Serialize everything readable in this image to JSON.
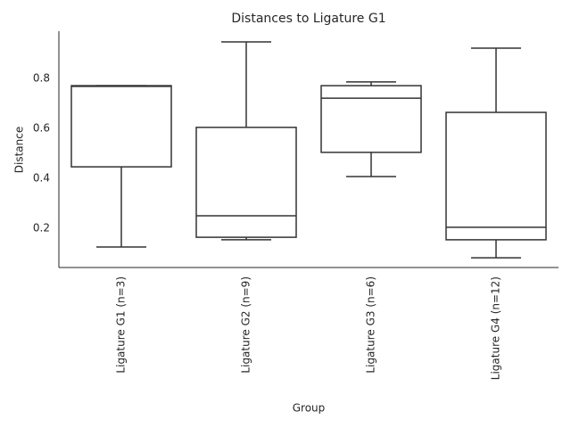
{
  "chart_data": {
    "type": "box",
    "title": "Distances to Ligature G1",
    "x_label": "Group",
    "y_label": "Distance",
    "categories": [
      "Ligature G1 (n=3)",
      "Ligature G2 (n=9)",
      "Ligature G3 (n=6)",
      "Ligature G4 (n=12)"
    ],
    "boxes": [
      {
        "min": 0.125,
        "q1": 0.446,
        "median": 0.768,
        "q3": 0.771,
        "max": 0.771
      },
      {
        "min": 0.154,
        "q1": 0.164,
        "median": 0.25,
        "q3": 0.604,
        "max": 0.946
      },
      {
        "min": 0.407,
        "q1": 0.504,
        "median": 0.721,
        "q3": 0.771,
        "max": 0.786
      },
      {
        "min": 0.082,
        "q1": 0.154,
        "median": 0.204,
        "q3": 0.664,
        "max": 0.921
      }
    ],
    "color": "#ffffff",
    "line_color": "#333333",
    "ylim": [
      0.043,
      0.989
    ],
    "yticks": [
      0.2,
      0.4,
      0.6,
      0.8
    ],
    "grid": false
  }
}
